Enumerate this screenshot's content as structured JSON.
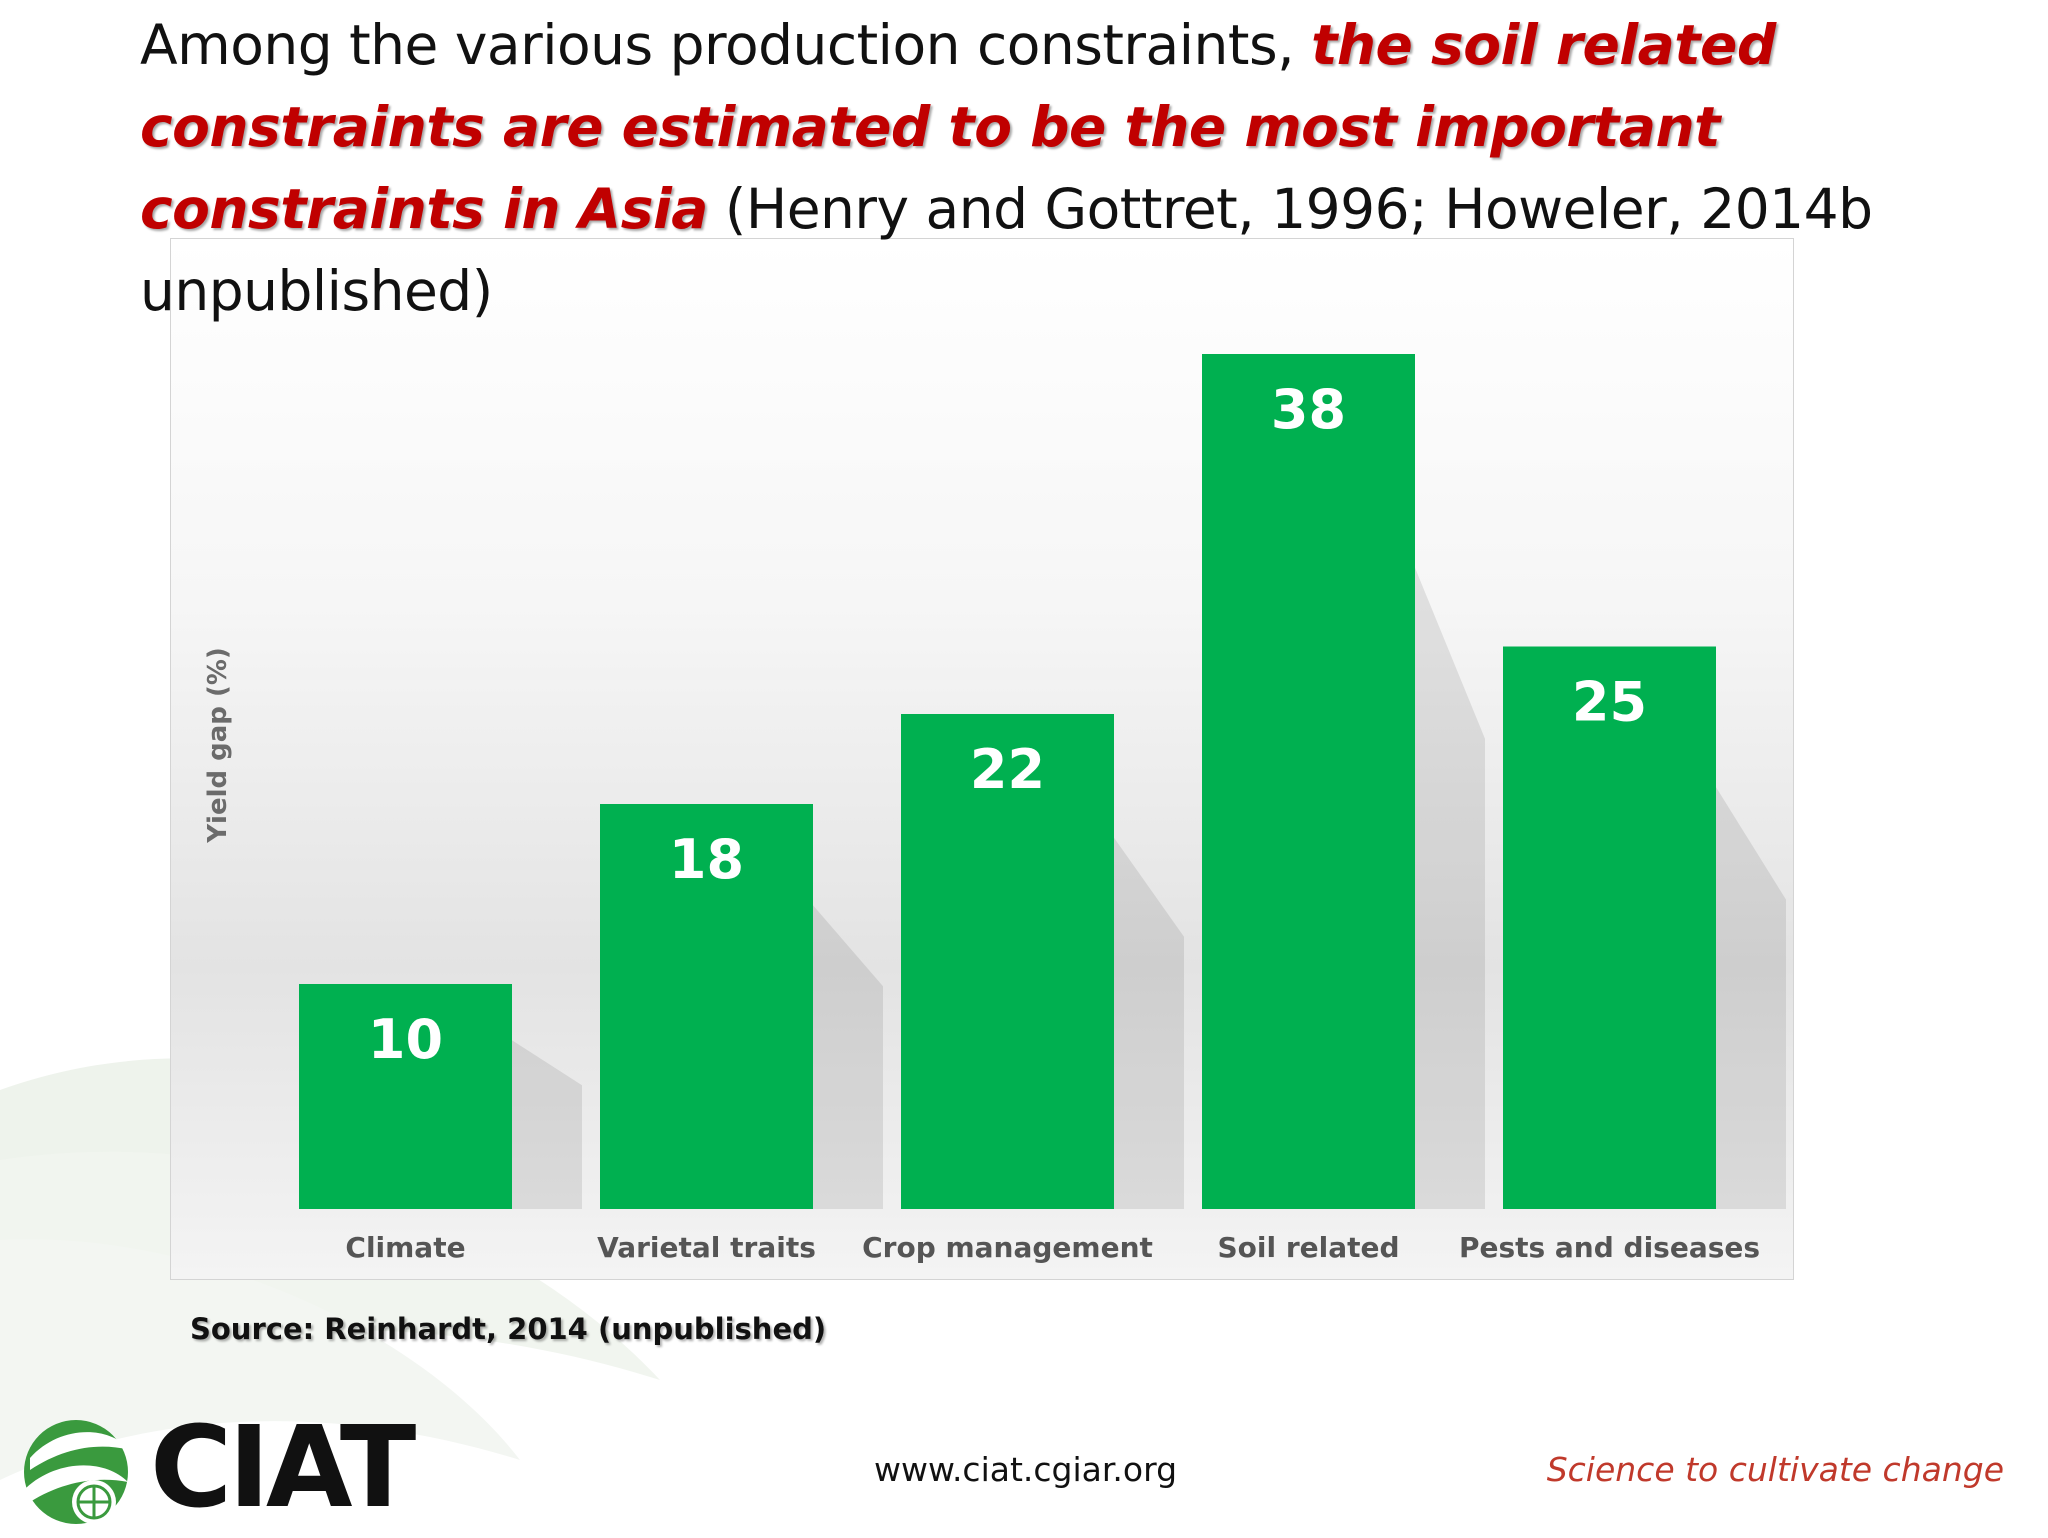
{
  "slide": {
    "title_part1": "Among the various production constraints, ",
    "title_highlight": "the soil related constraints are estimated to be the most important constraints in Asia",
    "title_part2": " (Henry and Gottret, 1996; Howeler, 2014b unpublished)",
    "source": "Source: Reinhardt, 2014 (unpublished)",
    "website": "www.ciat.cgiar.org",
    "tagline": "Science to cultivate change",
    "logo_text": "CIAT"
  },
  "colors": {
    "bar": "#00b050",
    "highlight_text": "#c00000",
    "tagline": "#c0392b",
    "logo_green": "#3a9a3e"
  },
  "chart_data": {
    "type": "bar",
    "categories": [
      "Climate",
      "Varietal traits",
      "Crop management",
      "Soil related",
      "Pests and diseases"
    ],
    "values": [
      10,
      18,
      22,
      38,
      25
    ],
    "title": "",
    "xlabel": "",
    "ylabel": "Yield gap  (%)",
    "ylim": [
      0,
      40
    ],
    "data_labels": true,
    "grid": false,
    "legend": "none"
  }
}
